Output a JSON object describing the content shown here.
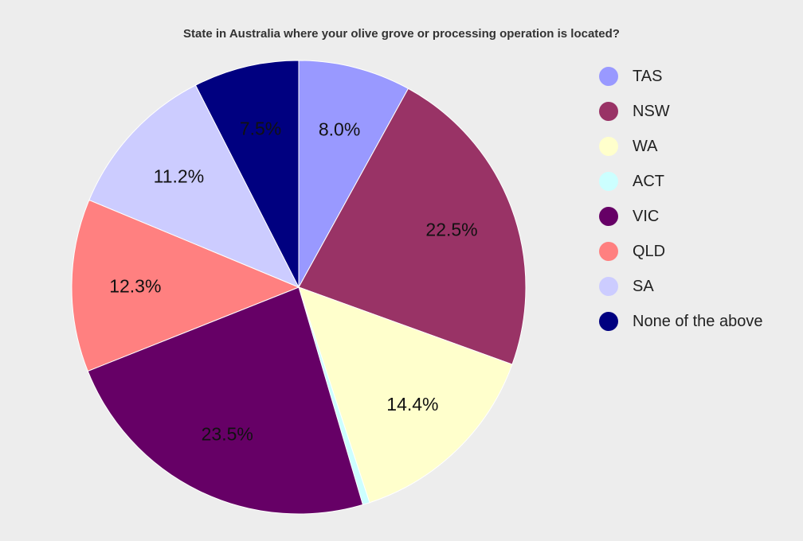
{
  "chart_data": {
    "type": "pie",
    "title": "State in Australia where your olive grove or processing operation is located?",
    "slices": [
      {
        "name": "TAS",
        "value": 8.0,
        "label": "8.0%",
        "color": "#9999ff"
      },
      {
        "name": "NSW",
        "value": 22.5,
        "label": "22.5%",
        "color": "#993366"
      },
      {
        "name": "WA",
        "value": 14.4,
        "label": "14.4%",
        "color": "#ffffcc"
      },
      {
        "name": "ACT",
        "value": 0.5,
        "label": "",
        "color": "#ccffff"
      },
      {
        "name": "VIC",
        "value": 23.5,
        "label": "23.5%",
        "color": "#660066"
      },
      {
        "name": "QLD",
        "value": 12.3,
        "label": "12.3%",
        "color": "#ff8080"
      },
      {
        "name": "SA",
        "value": 11.2,
        "label": "11.2%",
        "color": "#ccccff"
      },
      {
        "name": "None of the above",
        "value": 7.5,
        "label": "7.5%",
        "color": "#000080"
      }
    ],
    "legend_position": "right"
  }
}
